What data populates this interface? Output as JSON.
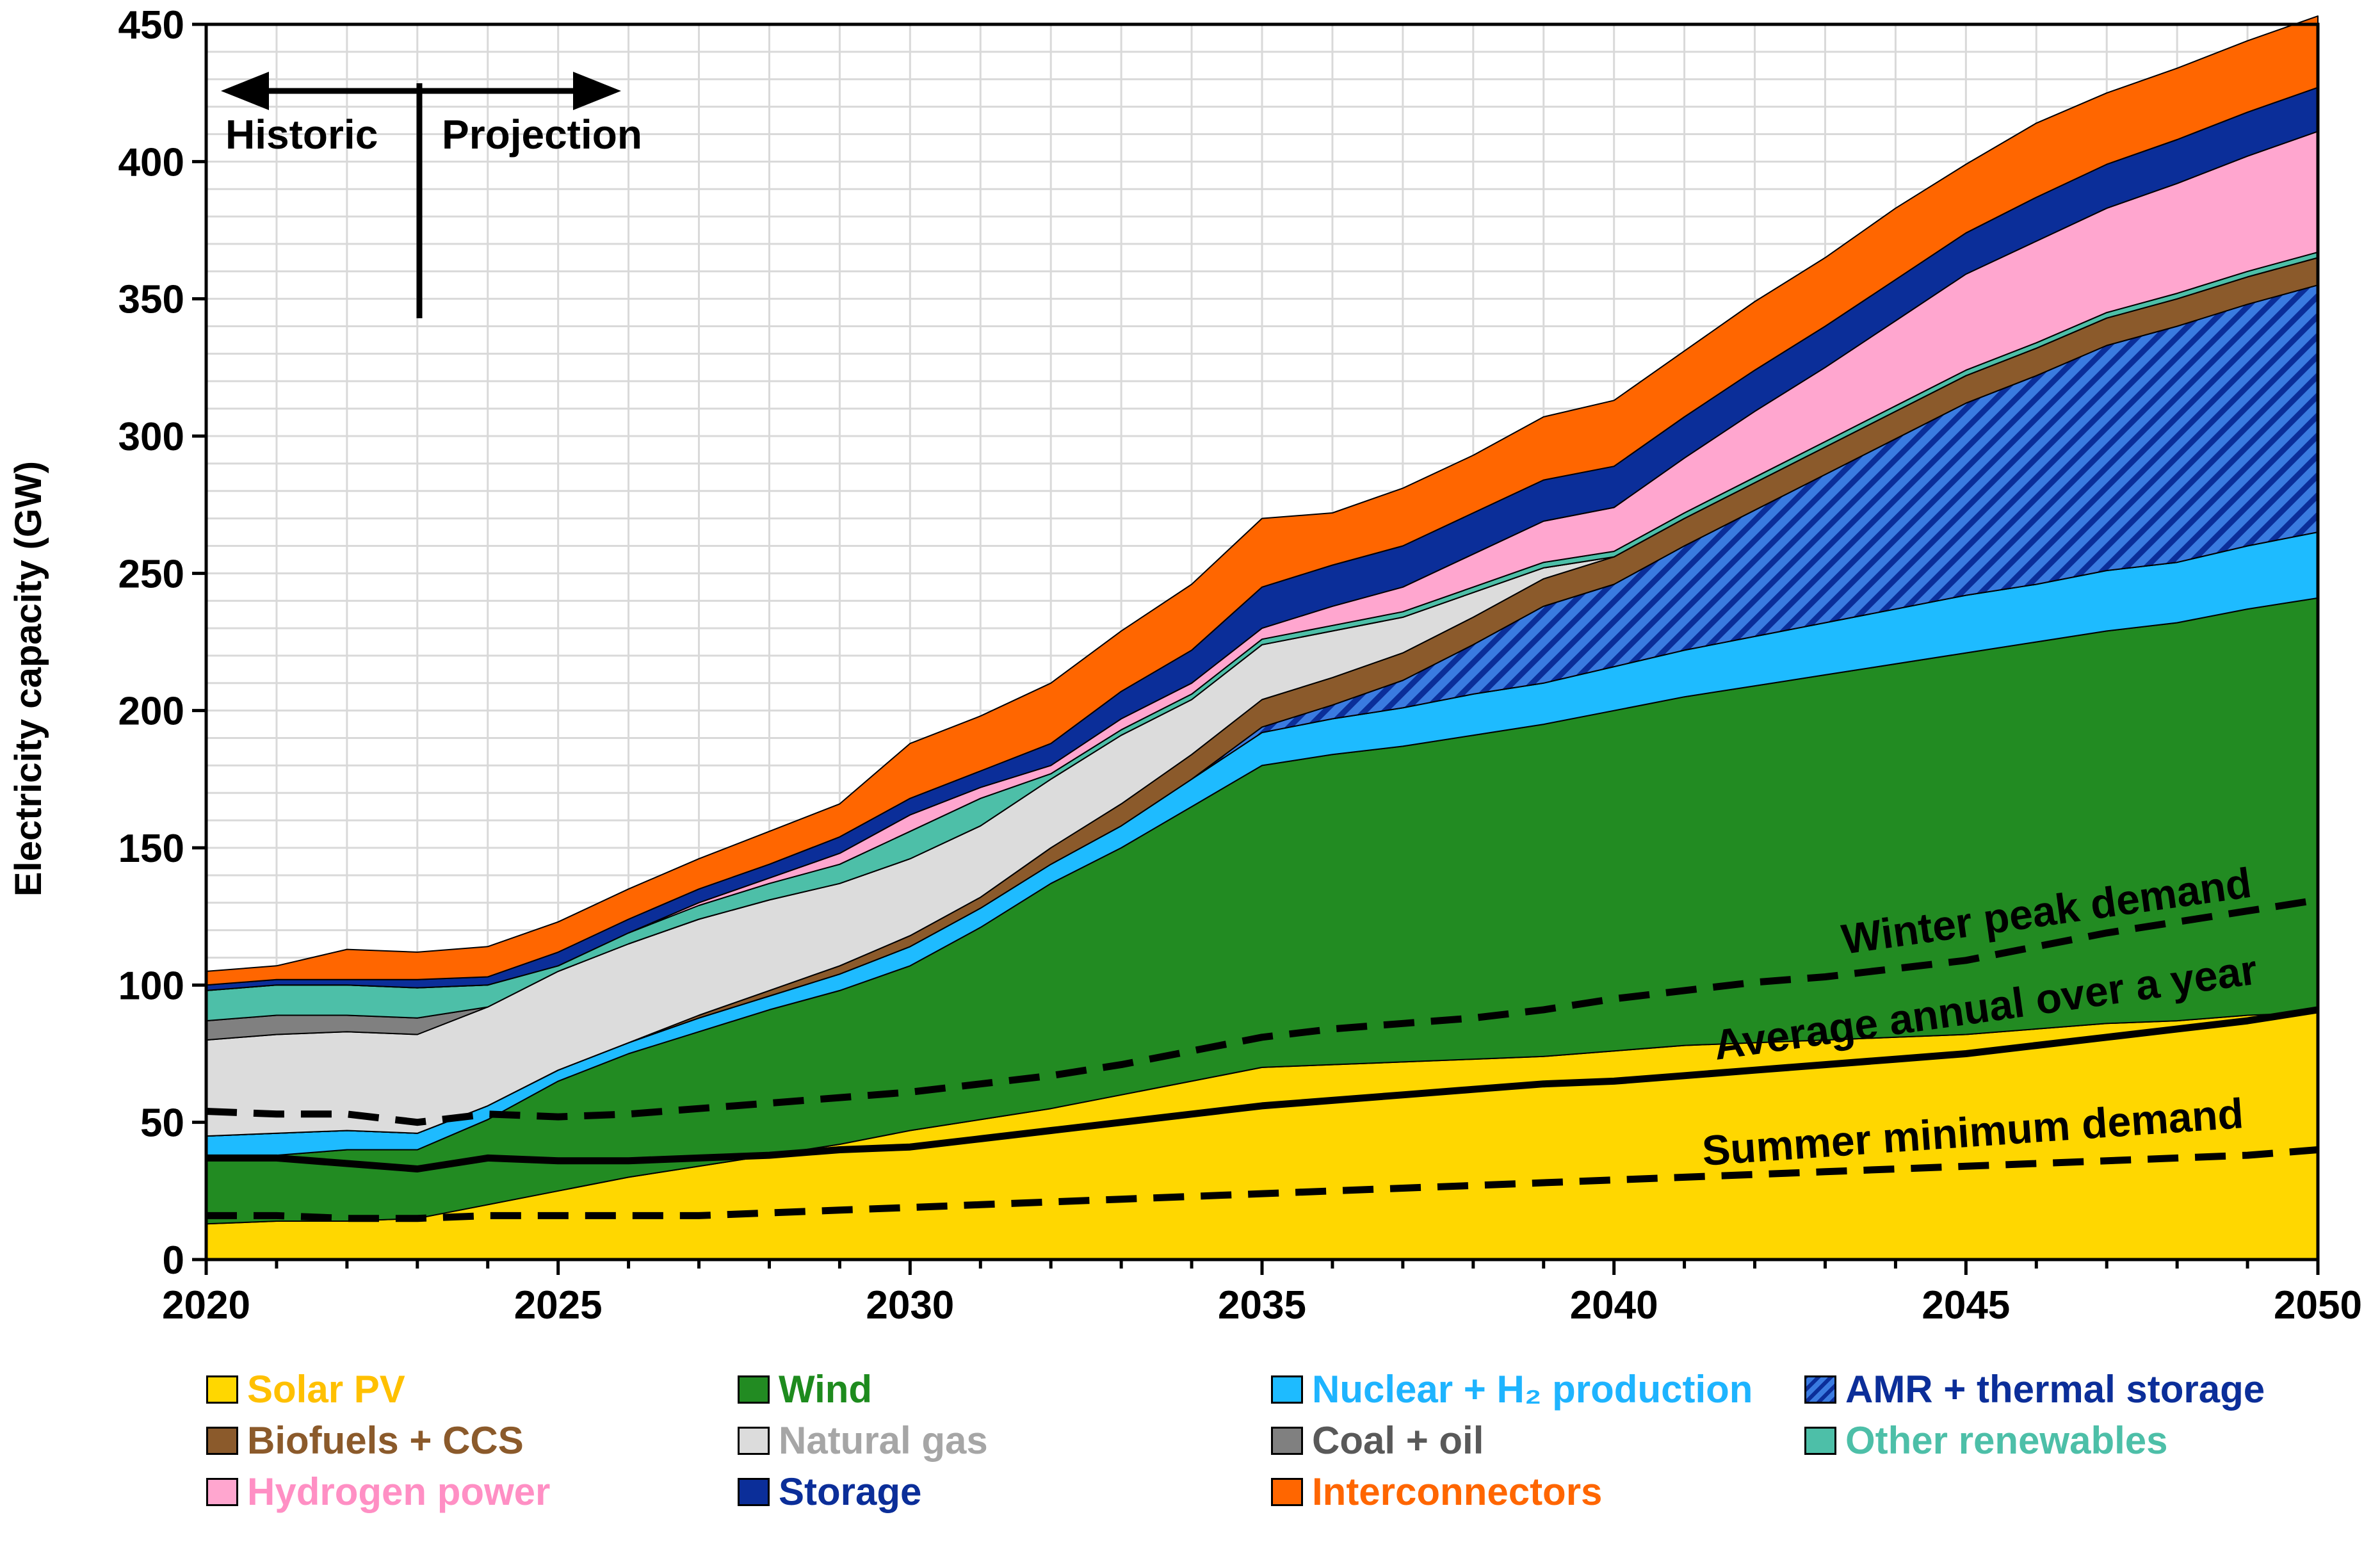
{
  "chart_data": {
    "type": "area",
    "title": "",
    "ylabel": "Electricity capacity (GW)",
    "xlabel": "",
    "xlim": [
      2020,
      2050
    ],
    "ylim": [
      0,
      450
    ],
    "x_ticks": [
      2020,
      2025,
      2030,
      2035,
      2040,
      2045,
      2050
    ],
    "y_ticks": [
      0,
      50,
      100,
      150,
      200,
      250,
      300,
      350,
      400,
      450
    ],
    "grid": true,
    "stacked": true,
    "x": [
      2020,
      2021,
      2022,
      2023,
      2024,
      2025,
      2026,
      2027,
      2028,
      2029,
      2030,
      2031,
      2032,
      2033,
      2034,
      2035,
      2036,
      2037,
      2038,
      2039,
      2040,
      2041,
      2042,
      2043,
      2044,
      2045,
      2046,
      2047,
      2048,
      2049,
      2050
    ],
    "series": [
      {
        "name": "Solar PV",
        "color": "#FFD700",
        "values": [
          13,
          14,
          14,
          15,
          20,
          25,
          30,
          34,
          38,
          42,
          47,
          51,
          55,
          60,
          65,
          70,
          71,
          72,
          73,
          74,
          76,
          78,
          79,
          80,
          81,
          82,
          84,
          86,
          87,
          89,
          90
        ]
      },
      {
        "name": "Wind",
        "color": "#228B22",
        "values": [
          23,
          24,
          26,
          25,
          31,
          40,
          45,
          49,
          53,
          56,
          60,
          70,
          82,
          90,
          100,
          110,
          113,
          115,
          118,
          121,
          124,
          127,
          130,
          133,
          136,
          139,
          141,
          143,
          145,
          148,
          151
        ]
      },
      {
        "name": "Nuclear + H₂ production",
        "color": "#1EBBFF",
        "values": [
          9,
          8,
          7,
          6,
          5,
          4,
          4,
          5,
          5,
          6,
          7,
          7,
          7,
          8,
          10,
          12,
          13,
          14,
          15,
          15,
          16,
          17,
          18,
          19,
          20,
          21,
          21,
          22,
          22,
          23,
          24
        ]
      },
      {
        "name": "AMR + thermal storage",
        "color": "#2255CC",
        "hatched": true,
        "values": [
          0,
          0,
          0,
          0,
          0,
          0,
          0,
          0,
          0,
          0,
          0,
          0,
          0,
          0,
          0,
          2,
          5,
          10,
          18,
          28,
          30,
          38,
          46,
          54,
          62,
          70,
          76,
          82,
          86,
          88,
          90
        ]
      },
      {
        "name": "Biofuels + CCS",
        "color": "#8B5A2B",
        "values": [
          0,
          0,
          0,
          0,
          0,
          0,
          0,
          1,
          2,
          3,
          4,
          4,
          6,
          8,
          9,
          10,
          10,
          10,
          10,
          10,
          10,
          10,
          10,
          10,
          10,
          10,
          10,
          10,
          10,
          10,
          10
        ]
      },
      {
        "name": "Natural gas",
        "color": "#DCDCDC",
        "values": [
          35,
          36,
          36,
          36,
          36,
          36,
          36,
          35,
          33,
          30,
          28,
          26,
          25,
          25,
          20,
          20,
          17,
          13,
          9,
          4,
          0,
          0,
          0,
          0,
          0,
          0,
          0,
          0,
          0,
          0,
          0
        ]
      },
      {
        "name": "Coal + oil",
        "color": "#808080",
        "values": [
          7,
          7,
          6,
          6,
          0,
          0,
          0,
          0,
          0,
          0,
          0,
          0,
          0,
          0,
          0,
          0,
          0,
          0,
          0,
          0,
          0,
          0,
          0,
          0,
          0,
          0,
          0,
          0,
          0,
          0,
          0
        ]
      },
      {
        "name": "Other renewables",
        "color": "#4DBFA8",
        "values": [
          11,
          11,
          11,
          11,
          8,
          2,
          4,
          5,
          6,
          7,
          10,
          10,
          2,
          2,
          2,
          2,
          2,
          2,
          2,
          2,
          2,
          2,
          2,
          2,
          2,
          2,
          2,
          2,
          2,
          2,
          2
        ]
      },
      {
        "name": "Hydrogen power",
        "color": "#FFA6CF",
        "values": [
          0,
          0,
          0,
          0,
          0,
          0,
          0,
          1,
          2,
          4,
          6,
          4,
          3,
          4,
          4,
          4,
          7,
          9,
          12,
          15,
          16,
          20,
          24,
          27,
          31,
          35,
          37,
          38,
          40,
          42,
          44
        ]
      },
      {
        "name": "Storage",
        "color": "#0B2E99",
        "values": [
          2,
          2,
          2,
          3,
          3,
          5,
          5,
          5,
          5,
          6,
          6,
          6,
          8,
          10,
          12,
          15,
          15,
          15,
          15,
          15,
          15,
          15,
          15,
          15,
          15,
          15,
          16,
          16,
          16,
          16,
          16
        ]
      },
      {
        "name": "Interconnectors",
        "color": "#FF6600",
        "values": [
          5,
          5,
          11,
          10,
          11,
          11,
          11,
          11,
          12,
          12,
          20,
          20,
          22,
          22,
          24,
          25,
          19,
          21,
          21,
          23,
          24,
          24,
          25,
          25,
          26,
          25,
          27,
          26,
          26,
          26,
          26
        ]
      }
    ],
    "demand_lines": [
      {
        "name": "Winter peak demand",
        "style": "dashed",
        "values": [
          54,
          53,
          53,
          50,
          53,
          52,
          53,
          55,
          57,
          59,
          61,
          64,
          67,
          71,
          76,
          81,
          84,
          86,
          88,
          91,
          95,
          98,
          101,
          103,
          106,
          109,
          114,
          119,
          123,
          127,
          131
        ]
      },
      {
        "name": "Average annual over a year",
        "style": "solid",
        "values": [
          37,
          37,
          35,
          33,
          37,
          36,
          36,
          37,
          38,
          40,
          41,
          44,
          47,
          50,
          53,
          56,
          58,
          60,
          62,
          64,
          65,
          67,
          69,
          71,
          73,
          75,
          78,
          81,
          84,
          87,
          91
        ]
      },
      {
        "name": "Summer minimum demand",
        "style": "dashed",
        "values": [
          16,
          16,
          15,
          15,
          16,
          16,
          16,
          16,
          17,
          18,
          19,
          20,
          21,
          22,
          23,
          24,
          25,
          26,
          27,
          28,
          29,
          30,
          31,
          32,
          33,
          34,
          35,
          36,
          37,
          38,
          40
        ]
      }
    ],
    "annotations": {
      "historic": "Historic",
      "projection": "Projection",
      "winter": "Winter peak demand",
      "average": "Average annual over a year",
      "summer": "Summer minimum demand"
    },
    "legend": {
      "placement": "bottom",
      "entries": [
        {
          "label": "Solar PV",
          "swatch": "#FFD700",
          "text_color": "#FFC000"
        },
        {
          "label": "Wind",
          "swatch": "#228B22",
          "text_color": "#1E8B1E"
        },
        {
          "label": "Nuclear + H₂ production",
          "swatch": "#1EBBFF",
          "text_color": "#1EB4FF"
        },
        {
          "label": "AMR + thermal storage",
          "swatch": "#2255CC",
          "text_color": "#0B2E99",
          "hatched": true
        },
        {
          "label": "Biofuels + CCS",
          "swatch": "#8B5A2B",
          "text_color": "#8B5A2B"
        },
        {
          "label": "Natural gas",
          "swatch": "#DCDCDC",
          "text_color": "#A6A6A6"
        },
        {
          "label": "Coal + oil",
          "swatch": "#808080",
          "text_color": "#595959"
        },
        {
          "label": "Other renewables",
          "swatch": "#4DBFA8",
          "text_color": "#4DBFA8"
        },
        {
          "label": "Hydrogen power",
          "swatch": "#FFA6CF",
          "text_color": "#FF8FC4"
        },
        {
          "label": "Storage",
          "swatch": "#0B2E99",
          "text_color": "#0B2E99"
        },
        {
          "label": "Interconnectors",
          "swatch": "#FF6600",
          "text_color": "#FF6600"
        }
      ]
    }
  }
}
